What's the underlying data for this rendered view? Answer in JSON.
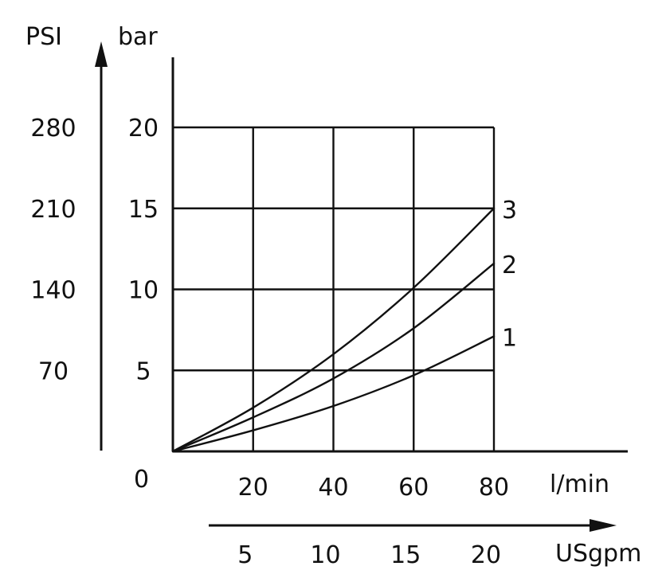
{
  "chart_data": {
    "type": "line",
    "x_unit_label": "l/min",
    "x_secondary_unit_label": "USgpm",
    "y_unit_label": "bar",
    "y_secondary_unit_label": "PSI",
    "origin_label": "0",
    "xlim": [
      0,
      80
    ],
    "ylim": [
      0,
      20
    ],
    "x_ticks": [
      20,
      40,
      60,
      80
    ],
    "y_ticks": [
      5,
      10,
      15,
      20
    ],
    "x_secondary_ticks": [
      {
        "label": "5",
        "x": 20
      },
      {
        "label": "10",
        "x": 40
      },
      {
        "label": "15",
        "x": 60
      },
      {
        "label": "20",
        "x": 80
      }
    ],
    "y_secondary_ticks": [
      {
        "label": "70",
        "y": 5
      },
      {
        "label": "140",
        "y": 10
      },
      {
        "label": "210",
        "y": 15
      },
      {
        "label": "280",
        "y": 20
      }
    ],
    "grid": true,
    "series": [
      {
        "name": "1",
        "x": [
          0,
          20,
          40,
          60,
          80
        ],
        "y": [
          0,
          1.3,
          2.8,
          4.7,
          7.1
        ]
      },
      {
        "name": "2",
        "x": [
          0,
          20,
          40,
          60,
          80
        ],
        "y": [
          0,
          2.1,
          4.5,
          7.6,
          11.6
        ]
      },
      {
        "name": "3",
        "x": [
          0,
          20,
          40,
          60,
          80
        ],
        "y": [
          0,
          2.7,
          6.0,
          10.1,
          15.0
        ]
      }
    ]
  }
}
